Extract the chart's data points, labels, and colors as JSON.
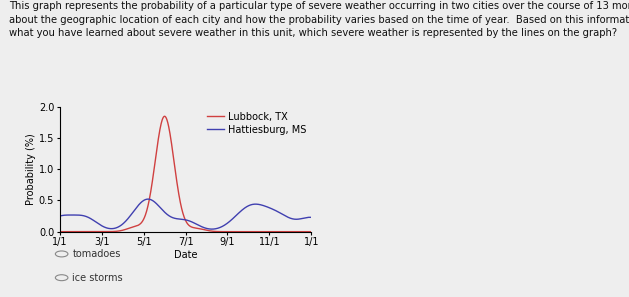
{
  "title_line1": "This graph represents the probability of a particular type of severe weather occurring in two cities over the course of 13 months.  Think",
  "title_line2": "about the geographic location of each city and how the probability varies based on the time of year.  Based on this information and",
  "title_line3": "what you have learned about severe weather in this unit, which severe weather is represented by the lines on the graph?",
  "ylabel": "Probability (%)",
  "xlabel": "Date",
  "xlim_labels": [
    "1/1",
    "3/1",
    "5/1",
    "7/1",
    "9/1",
    "11/1",
    "1/1"
  ],
  "ylim": [
    0.0,
    2.0
  ],
  "yticks": [
    0.0,
    0.5,
    1.0,
    1.5,
    2.0
  ],
  "legend": [
    "Lubbock, TX",
    "Hattiesburg, MS"
  ],
  "lubbock_color": "#d04040",
  "hattiesburg_color": "#4040b0",
  "background_color": "#eeeeee",
  "radio_options": [
    "tomadoes",
    "ice storms"
  ],
  "title_fontsize": 7.2,
  "axis_fontsize": 7.0,
  "legend_fontsize": 7.0
}
